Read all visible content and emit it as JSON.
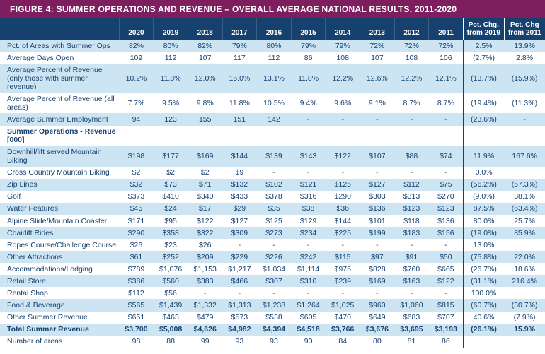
{
  "title": "FIGURE 4: SUMMER OPERATIONS AND REVENUE – OVERALL AVERAGE NATIONAL RESULTS, 2011-2020",
  "colors": {
    "title_bg": "#7d1e5e",
    "header_bg": "#16416f",
    "stripe_bg": "#cde4f2",
    "text": "#16416f"
  },
  "header": {
    "label": "",
    "years": [
      "2020",
      "2019",
      "2018",
      "2017",
      "2016",
      "2015",
      "2014",
      "2013",
      "2012",
      "2011"
    ],
    "pct1": "Pct. Chg. from 2019",
    "pct2": "Pct. Chg from 2011"
  },
  "fontsize": {
    "title": 12,
    "header": 10,
    "body": 10.5
  },
  "rows": [
    {
      "label": "Pct. of Areas with Summer Ops",
      "vals": [
        "82%",
        "80%",
        "82%",
        "79%",
        "80%",
        "79%",
        "79%",
        "72%",
        "72%",
        "72%"
      ],
      "p1": "2.5%",
      "p2": "13.9%",
      "stripe": true
    },
    {
      "label": "Average Days Open",
      "vals": [
        "109",
        "112",
        "107",
        "117",
        "112",
        "86",
        "108",
        "107",
        "108",
        "106"
      ],
      "p1": "(2.7%)",
      "p2": "2.8%",
      "stripe": false
    },
    {
      "label": "Average Percent of Revenue\n(only those with summer revenue)",
      "vals": [
        "10.2%",
        "11.8%",
        "12.0%",
        "15.0%",
        "13.1%",
        "11.8%",
        "12.2%",
        "12.6%",
        "12.2%",
        "12.1%"
      ],
      "p1": "(13.7%)",
      "p2": "(15.9%)",
      "stripe": true
    },
    {
      "label": "Average Percent of Revenue (all areas)",
      "vals": [
        "7.7%",
        "9.5%",
        "9.8%",
        "11.8%",
        "10.5%",
        "9.4%",
        "9.6%",
        "9.1%",
        "8.7%",
        "8.7%"
      ],
      "p1": "(19.4%)",
      "p2": "(11.3%)",
      "stripe": false
    },
    {
      "label": "Average Summer Employment",
      "vals": [
        "94",
        "123",
        "155",
        "151",
        "142",
        "-",
        "-",
        "-",
        "-",
        "-"
      ],
      "p1": "(23.6%)",
      "p2": "-",
      "stripe": true
    },
    {
      "label": "Summer Operations - Revenue [000]",
      "vals": [
        "",
        "",
        "",
        "",
        "",
        "",
        "",
        "",
        "",
        ""
      ],
      "p1": "",
      "p2": "",
      "stripe": false,
      "section": true
    },
    {
      "label": "Downhill/lift served Mountain Biking",
      "vals": [
        "$198",
        "$177",
        "$169",
        "$144",
        "$139",
        "$143",
        "$122",
        "$107",
        "$88",
        "$74"
      ],
      "p1": "11.9%",
      "p2": "167.6%",
      "stripe": true
    },
    {
      "label": "Cross Country Mountain Biking",
      "vals": [
        "$2",
        "$2",
        "$2",
        "$9",
        "-",
        "-",
        "-",
        "-",
        "-",
        "-"
      ],
      "p1": "0.0%",
      "p2": "",
      "stripe": false
    },
    {
      "label": "Zip Lines",
      "vals": [
        "$32",
        "$73",
        "$71",
        "$132",
        "$102",
        "$121",
        "$125",
        "$127",
        "$112",
        "$75"
      ],
      "p1": "(56.2%)",
      "p2": "(57.3%)",
      "stripe": true
    },
    {
      "label": "Golf",
      "vals": [
        "$373",
        "$410",
        "$340",
        "$433",
        "$378",
        "$316",
        "$290",
        "$303",
        "$313",
        "$270"
      ],
      "p1": "(9.0%)",
      "p2": "38.1%",
      "stripe": false
    },
    {
      "label": "Water Features",
      "vals": [
        "$45",
        "$24",
        "$17",
        "$29",
        "$35",
        "$38",
        "$36",
        "$136",
        "$123",
        "$123"
      ],
      "p1": "87.5%",
      "p2": "(63.4%)",
      "stripe": true
    },
    {
      "label": "Alpine Slide/Mountain Coaster",
      "vals": [
        "$171",
        "$95",
        "$122",
        "$127",
        "$125",
        "$129",
        "$144",
        "$101",
        "$118",
        "$136"
      ],
      "p1": "80.0%",
      "p2": "25.7%",
      "stripe": false
    },
    {
      "label": "Chairlift Rides",
      "vals": [
        "$290",
        "$358",
        "$322",
        "$309",
        "$273",
        "$234",
        "$225",
        "$199",
        "$183",
        "$156"
      ],
      "p1": "(19.0%)",
      "p2": "85.9%",
      "stripe": true
    },
    {
      "label": "Ropes Course/Challenge Course",
      "vals": [
        "$26",
        "$23",
        "$26",
        "-",
        "-",
        "-",
        "-",
        "-",
        "-",
        "-"
      ],
      "p1": "13.0%",
      "p2": "",
      "stripe": false
    },
    {
      "label": "Other Attractions",
      "vals": [
        "$61",
        "$252",
        "$209",
        "$229",
        "$226",
        "$242",
        "$115",
        "$97",
        "$91",
        "$50"
      ],
      "p1": "(75.8%)",
      "p2": "22.0%",
      "stripe": true
    },
    {
      "label": "Accommodations/Lodging",
      "vals": [
        "$789",
        "$1,076",
        "$1,153",
        "$1,217",
        "$1,034",
        "$1,114",
        "$975",
        "$828",
        "$760",
        "$665"
      ],
      "p1": "(26.7%)",
      "p2": "18.6%",
      "stripe": false
    },
    {
      "label": "Retail Store",
      "vals": [
        "$386",
        "$560",
        "$383",
        "$466",
        "$307",
        "$310",
        "$239",
        "$169",
        "$163",
        "$122"
      ],
      "p1": "(31.1%)",
      "p2": "216.4%",
      "stripe": true
    },
    {
      "label": "Rental Shop",
      "vals": [
        "$112",
        "$56",
        "-",
        "-",
        "-",
        "-",
        "-",
        "-",
        "-",
        "-"
      ],
      "p1": "100.0%",
      "p2": "",
      "stripe": false
    },
    {
      "label": "Food & Beverage",
      "vals": [
        "$565",
        "$1,439",
        "$1,332",
        "$1,313",
        "$1,238",
        "$1,264",
        "$1,025",
        "$960",
        "$1,060",
        "$815"
      ],
      "p1": "(60.7%)",
      "p2": "(30.7%)",
      "stripe": true
    },
    {
      "label": "Other Summer Revenue",
      "vals": [
        "$651",
        "$463",
        "$479",
        "$573",
        "$538",
        "$605",
        "$470",
        "$649",
        "$683",
        "$707"
      ],
      "p1": "40.6%",
      "p2": "(7.9%)",
      "stripe": false
    },
    {
      "label": "Total Summer Revenue",
      "vals": [
        "$3,700",
        "$5,008",
        "$4,626",
        "$4,982",
        "$4,394",
        "$4,518",
        "$3,766",
        "$3,676",
        "$3,695",
        "$3,193"
      ],
      "p1": "(26.1%)",
      "p2": "15.9%",
      "stripe": true,
      "total": true
    },
    {
      "label": "Number of areas",
      "vals": [
        "98",
        "88",
        "99",
        "93",
        "93",
        "90",
        "84",
        "80",
        "81",
        "86"
      ],
      "p1": "",
      "p2": "",
      "stripe": false
    }
  ]
}
